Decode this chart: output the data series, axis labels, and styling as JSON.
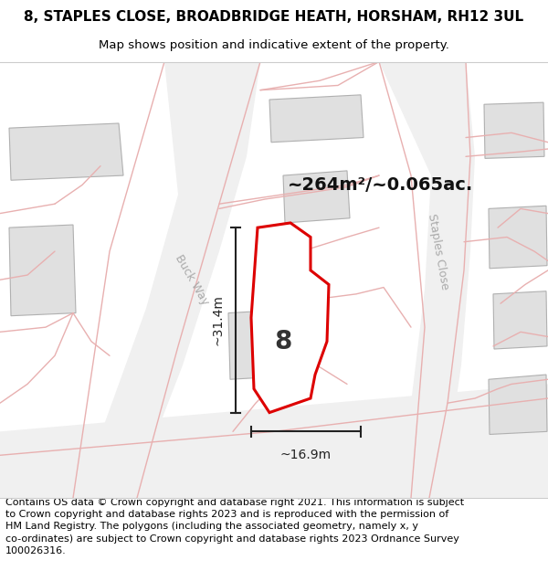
{
  "title_line1": "8, STAPLES CLOSE, BROADBRIDGE HEATH, HORSHAM, RH12 3UL",
  "title_line2": "Map shows position and indicative extent of the property.",
  "footer_text": "Contains OS data © Crown copyright and database right 2021. This information is subject to Crown copyright and database rights 2023 and is reproduced with the permission of HM Land Registry. The polygons (including the associated geometry, namely x, y co-ordinates) are subject to Crown copyright and database rights 2023 Ordnance Survey 100026316.",
  "area_label": "~264m²/~0.065ac.",
  "plot_number": "8",
  "dim_width": "~16.9m",
  "dim_height": "~31.4m",
  "map_bg": "#ffffff",
  "road_fill": "#f0f0f0",
  "road_line_color": "#e8b0b0",
  "plot_edge_color": "#dd0000",
  "neighbor_fill": "#e0e0e0",
  "neighbor_edge": "#b0b0b0",
  "street_color": "#aaaaaa",
  "dim_color": "#222222",
  "title_fontsize": 11,
  "subtitle_fontsize": 9.5,
  "footer_fontsize": 8.0,
  "street_label_buck_way": "Buck Way",
  "street_label_staples": "Staples Close"
}
